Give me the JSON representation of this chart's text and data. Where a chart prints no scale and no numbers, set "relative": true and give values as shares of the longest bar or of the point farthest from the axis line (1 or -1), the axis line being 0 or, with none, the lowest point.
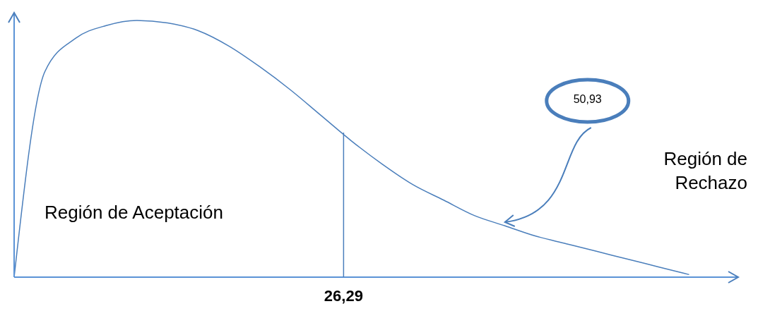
{
  "chart_data": {
    "type": "line",
    "relative": true,
    "color": "#4a7ebb",
    "categories": [
      null,
      null,
      null,
      null,
      null,
      null,
      null,
      null,
      null,
      null,
      null,
      null,
      null,
      null,
      null,
      null,
      null,
      null,
      null,
      null,
      null,
      null,
      null,
      null
    ],
    "values": [
      0,
      0.8,
      0.93,
      0.98,
      1.0,
      0.99,
      0.96,
      0.9,
      0.82,
      0.73,
      0.63,
      0.53,
      0.44,
      0.36,
      0.3,
      0.24,
      0.2,
      0.16,
      0.13,
      0.1,
      0.07,
      0.04,
      0.01,
      null
    ],
    "annotations": [
      "Región de Aceptación",
      "Región de Rechazo",
      "50,93",
      "26,29"
    ],
    "grid": false,
    "legend": false,
    "marker": "none",
    "line_style": "solid"
  }
}
